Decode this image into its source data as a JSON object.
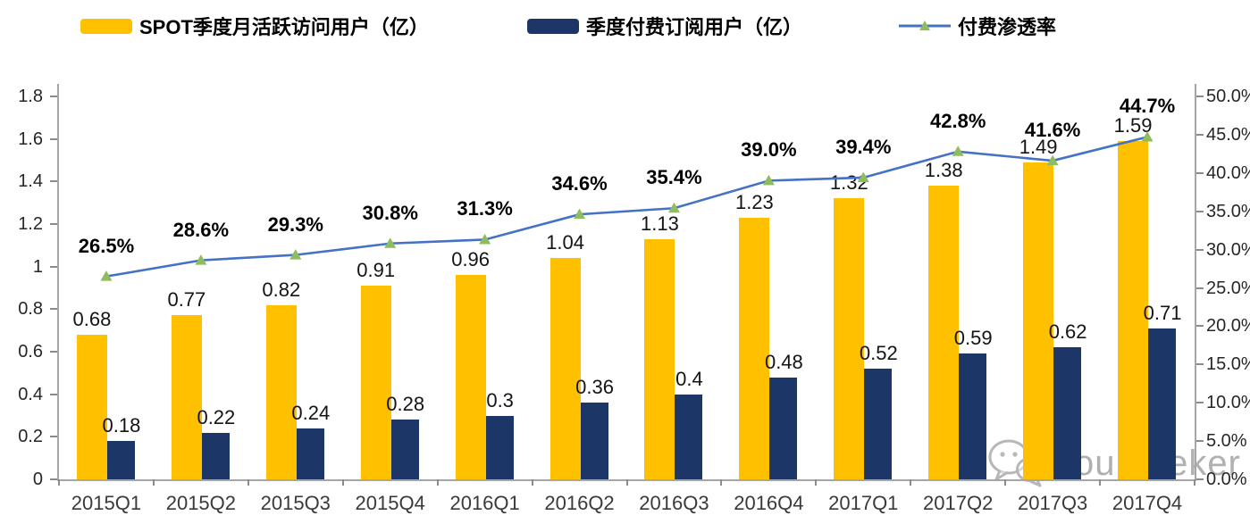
{
  "legend": {
    "items": [
      {
        "label": "SPOT季度月活跃访问用户（亿）",
        "swatch": "bar",
        "color": "#FFC000"
      },
      {
        "label": "季度付费订阅用户（亿）",
        "swatch": "bar",
        "color": "#1B3667"
      },
      {
        "label": "付费渗透率",
        "swatch": "line-triangle",
        "color": "#4472C4",
        "marker_color": "#8FBC5E"
      }
    ]
  },
  "chart_data": {
    "type": "bar+line combo",
    "categories": [
      "2015Q1",
      "2015Q2",
      "2015Q3",
      "2015Q4",
      "2016Q1",
      "2016Q2",
      "2016Q3",
      "2016Q4",
      "2017Q1",
      "2017Q2",
      "2017Q3",
      "2017Q4"
    ],
    "series": [
      {
        "name": "SPOT季度月活跃访问用户（亿）",
        "type": "bar",
        "axis": "left",
        "color": "#FFC000",
        "values": [
          0.68,
          0.77,
          0.82,
          0.91,
          0.96,
          1.04,
          1.13,
          1.23,
          1.32,
          1.38,
          1.49,
          1.59
        ],
        "labels": [
          "0.68",
          "0.77",
          "0.82",
          "0.91",
          "0.96",
          "1.04",
          "1.13",
          "1.23",
          "1.32",
          "1.38",
          "1.49",
          "1.59"
        ]
      },
      {
        "name": "季度付费订阅用户（亿）",
        "type": "bar",
        "axis": "left",
        "color": "#1B3667",
        "values": [
          0.18,
          0.22,
          0.24,
          0.28,
          0.3,
          0.36,
          0.4,
          0.48,
          0.52,
          0.59,
          0.62,
          0.71
        ],
        "labels": [
          "0.18",
          "0.22",
          "0.24",
          "0.28",
          "0.3",
          "0.36",
          "0.4",
          "0.48",
          "0.52",
          "0.59",
          "0.62",
          "0.71"
        ]
      },
      {
        "name": "付费渗透率",
        "type": "line",
        "axis": "right",
        "color": "#4472C4",
        "marker": "triangle",
        "marker_color": "#8FBC5E",
        "values": [
          26.5,
          28.6,
          29.3,
          30.8,
          31.3,
          34.6,
          35.4,
          39.0,
          39.4,
          42.8,
          41.6,
          44.7
        ],
        "labels": [
          "26.5%",
          "28.6%",
          "29.3%",
          "30.8%",
          "31.3%",
          "34.6%",
          "35.4%",
          "39.0%",
          "39.4%",
          "42.8%",
          "41.6%",
          "44.7%"
        ]
      }
    ],
    "left_axis": {
      "min": 0,
      "max": 1.8,
      "ticks": [
        "0",
        "0.2",
        "0.4",
        "0.6",
        "0.8",
        "1",
        "1.2",
        "1.4",
        "1.6",
        "1.8"
      ]
    },
    "right_axis": {
      "min": 0,
      "max": 50,
      "ticks": [
        "0.0%",
        "5.0%",
        "10.0%",
        "15.0%",
        "20.0%",
        "25.0%",
        "30.0%",
        "35.0%",
        "40.0%",
        "45.0%",
        "50.0%"
      ]
    },
    "grid": false,
    "legend_position": "top",
    "title": ""
  },
  "watermark": {
    "text": "Yourseeker",
    "icon": "wechat-icon"
  }
}
